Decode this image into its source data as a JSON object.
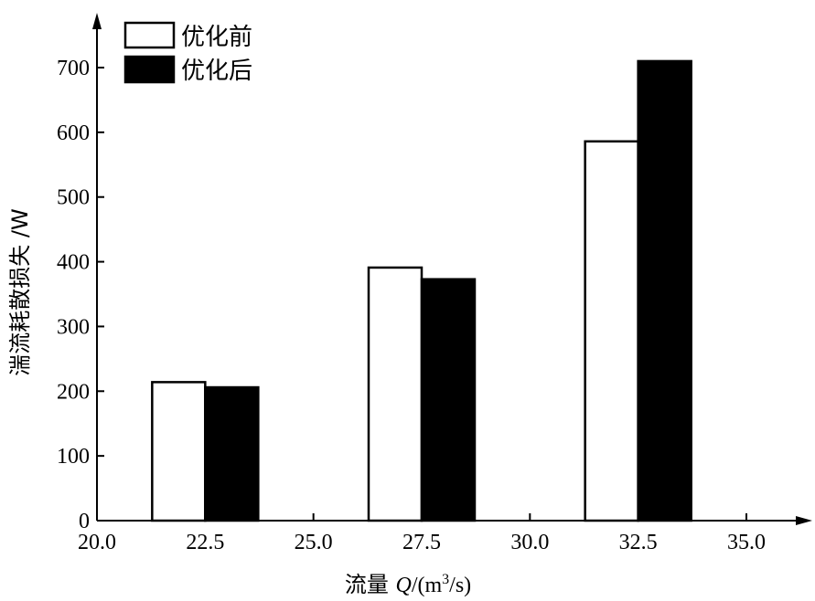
{
  "chart_data": {
    "type": "bar",
    "xlabel_prefix": "流量 ",
    "xlabel_var": "Q",
    "xlabel_unit_start": "/(m",
    "xlabel_unit_sup": "3",
    "xlabel_unit_end": "/s)",
    "ylabel": "湍流耗散损失 /W",
    "x_ticks": [
      "20.0",
      "22.5",
      "25.0",
      "27.5",
      "30.0",
      "32.5",
      "35.0"
    ],
    "x_tick_values": [
      20.0,
      22.5,
      25.0,
      27.5,
      30.0,
      32.5,
      35.0
    ],
    "y_ticks": [
      "0",
      "100",
      "200",
      "300",
      "400",
      "500",
      "600",
      "700"
    ],
    "y_tick_values": [
      0,
      100,
      200,
      300,
      400,
      500,
      600,
      700
    ],
    "xlim": [
      20.0,
      36.0
    ],
    "ylim": [
      0,
      780
    ],
    "categories": [
      22.5,
      27.5,
      32.5
    ],
    "series": [
      {
        "name": "优化前",
        "values": [
          214,
          391,
          586
        ],
        "fill": "#ffffff"
      },
      {
        "name": "优化后",
        "values": [
          206,
          373,
          710
        ],
        "fill": "#000000"
      }
    ],
    "legend_position": "top-left",
    "grid": false
  }
}
